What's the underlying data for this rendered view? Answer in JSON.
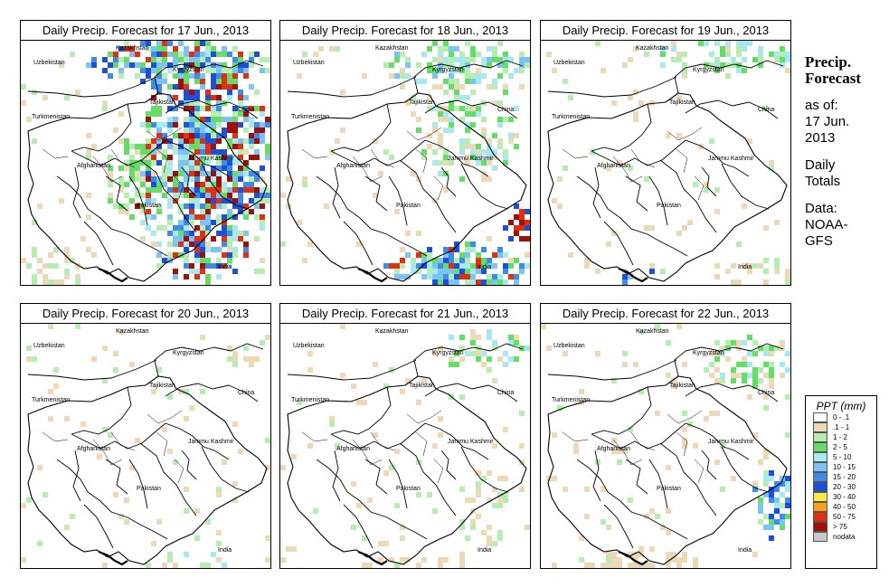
{
  "panels": [
    {
      "title": "Daily Precip. Forecast for  17 Jun., 2013",
      "day": 0
    },
    {
      "title": "Daily Precip. Forecast for  18 Jun., 2013",
      "day": 1
    },
    {
      "title": "Daily Precip. Forecast for  19 Jun., 2013",
      "day": 2
    },
    {
      "title": "Daily Precip. Forecast for  20 Jun., 2013",
      "day": 3
    },
    {
      "title": "Daily Precip. Forecast for  21 Jun., 2013",
      "day": 4
    },
    {
      "title": "Daily Precip. Forecast for  22 Jun., 2013",
      "day": 5
    }
  ],
  "map_labels": {
    "kazakhstan": "Kazakhstan",
    "uzbekistan": "Uzbekistan",
    "kyrgyzstan": "Kyrgyzstan",
    "tajikistan": "Tajikistan",
    "turkmenistan": "Turkmenistan",
    "china": "China",
    "afghanistan": "Afghanistan",
    "jammu_kashmir": "Jammu Kashmir",
    "pakistan": "Pakistan",
    "india": "India"
  },
  "sidebar": {
    "title_line1": "Precip.",
    "title_line2": "Forecast",
    "asof_line1": "as of:",
    "asof_line2": "17 Jun.",
    "asof_line3": "2013",
    "totals_line1": "Daily",
    "totals_line2": "Totals",
    "data_line1": "Data:",
    "data_line2": "NOAA-",
    "data_line3": "GFS"
  },
  "legend": {
    "title": "PPT (mm)",
    "items": [
      {
        "label": "0 - .1",
        "color": "#ffffff"
      },
      {
        "label": ".1 - 1",
        "color": "#ecd9b8"
      },
      {
        "label": "1 - 2",
        "color": "#b5eeb0"
      },
      {
        "label": "2 - 5",
        "color": "#66dd66"
      },
      {
        "label": "5 - 10",
        "color": "#a8e8f0"
      },
      {
        "label": "10 - 15",
        "color": "#7cc4f4"
      },
      {
        "label": "15 - 20",
        "color": "#3f8ce8"
      },
      {
        "label": "20 - 30",
        "color": "#1c50dc"
      },
      {
        "label": "30 - 40",
        "color": "#f8e848"
      },
      {
        "label": "40 - 50",
        "color": "#f8a020"
      },
      {
        "label": "50 - 75",
        "color": "#e03010"
      },
      {
        "label": "> 75",
        "color": "#a01008"
      },
      {
        "label": "nodata",
        "color": "#c8c8c8"
      }
    ]
  }
}
